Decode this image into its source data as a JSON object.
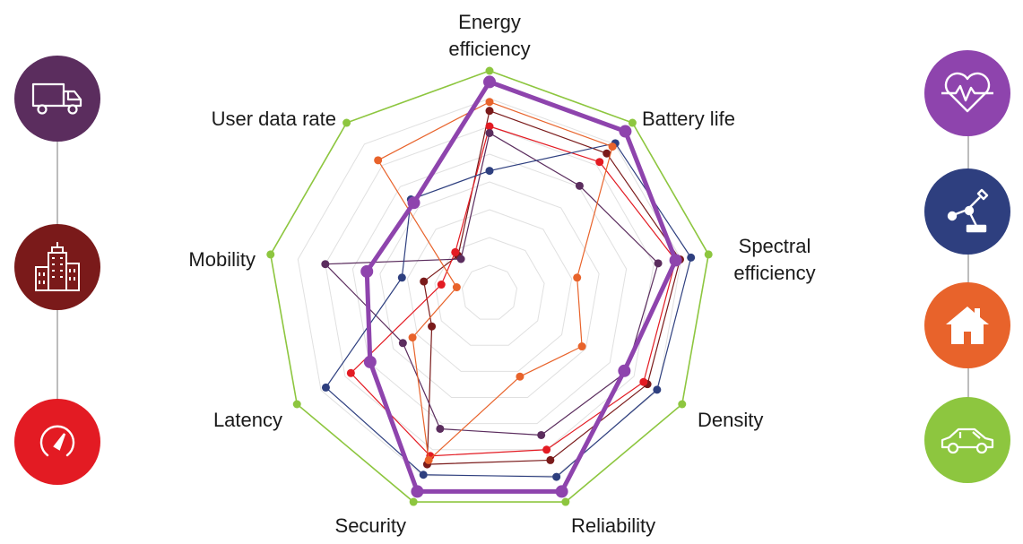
{
  "chart_data": {
    "type": "radar",
    "axes": [
      "Energy efficiency",
      "Battery life",
      "Spectral efficiency",
      "Density",
      "Reliability",
      "Security",
      "Latency",
      "Mobility",
      "User data rate"
    ],
    "rmax": 1.0,
    "grid_levels": 7,
    "grid": true,
    "legend": "none",
    "outer": {
      "color": "#8dc63f",
      "values": [
        1,
        1,
        1,
        1,
        1,
        1,
        1,
        1,
        1
      ]
    },
    "series": [
      {
        "color": "#8e44ad",
        "values": [
          0.95,
          0.95,
          0.85,
          0.7,
          0.95,
          0.95,
          0.62,
          0.56,
          0.53
        ]
      },
      {
        "color": "#7a1a1a",
        "values": [
          0.82,
          0.82,
          0.87,
          0.82,
          0.8,
          0.82,
          0.3,
          0.3,
          0.22
        ]
      },
      {
        "color": "#e31b23",
        "values": [
          0.75,
          0.77,
          0.85,
          0.8,
          0.75,
          0.78,
          0.72,
          0.22,
          0.24
        ]
      },
      {
        "color": "#5b2d5e",
        "values": [
          0.72,
          0.63,
          0.77,
          0.71,
          0.68,
          0.65,
          0.45,
          0.75,
          0.2
        ]
      },
      {
        "color": "#2e3f7f",
        "values": [
          0.55,
          0.88,
          0.92,
          0.87,
          0.88,
          0.87,
          0.85,
          0.4,
          0.55
        ]
      },
      {
        "color": "#e8632b",
        "values": [
          0.86,
          0.86,
          0.4,
          0.48,
          0.4,
          0.8,
          0.4,
          0.15,
          0.78
        ]
      }
    ]
  },
  "labels": {
    "energy_line1": "Energy",
    "energy_line2": "efficiency",
    "battery": "Battery life",
    "spectral_line1": "Spectral",
    "spectral_line2": "efficiency",
    "density": "Density",
    "reliability": "Reliability",
    "security": "Security",
    "latency": "Latency",
    "mobility": "Mobility",
    "user_data_rate": "User data rate"
  },
  "icons": {
    "left": [
      {
        "name": "truck-icon",
        "color": "#5b2d5e"
      },
      {
        "name": "city-buildings-icon",
        "color": "#7a1a1a"
      },
      {
        "name": "speedometer-icon",
        "color": "#e31b23"
      }
    ],
    "right": [
      {
        "name": "heart-rate-icon",
        "color": "#8e44ad"
      },
      {
        "name": "robot-arm-icon",
        "color": "#2e3f7f"
      },
      {
        "name": "house-icon",
        "color": "#e8632b"
      },
      {
        "name": "car-icon",
        "color": "#8dc63f"
      }
    ]
  }
}
